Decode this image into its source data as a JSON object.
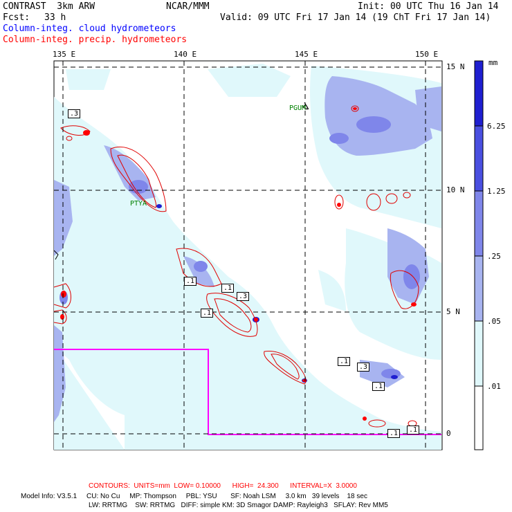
{
  "header": {
    "model": "CONTRAST  3km ARW",
    "org": "NCAR/MMM",
    "init": "Init: 00 UTC Thu 16 Jan 14",
    "fcst_label": "Fcst:",
    "fcst_value": "33 h",
    "valid": "Valid: 09 UTC Fri 17 Jan 14 (19 ChT Fri 17 Jan 14)",
    "legend_cloud": "Column-integ. cloud hydrometeors",
    "legend_precip": "Column-integ. precip. hydrometeors"
  },
  "colors": {
    "cloud_text": "#0000ff",
    "precip_text": "#ff0000",
    "contour": "#e00000",
    "box": "#ff00ff",
    "station": "#008000",
    "shade_lightest": "#e0f8fb",
    "shade_light": "#a8b4f0",
    "shade_mid": "#7f86ea",
    "shade_strong": "#4a4fe0",
    "shade_darkest": "#1f1fd0"
  },
  "axes": {
    "lon_labels": [
      "135 E",
      "140 E",
      "145 E",
      "150 E"
    ],
    "lat_labels": [
      "15 N",
      "10 N",
      "5 N",
      "0"
    ]
  },
  "stations": [
    "PGUM",
    "PTYA"
  ],
  "contour_labels": [
    ".3",
    ".1",
    ".1",
    ".3",
    ".1",
    ".1",
    ".3",
    ".1",
    ".1",
    ".1"
  ],
  "colorbar": {
    "unit": "mm",
    "ticks": [
      "6.25",
      "1.25",
      ".25",
      ".05",
      ".01"
    ]
  },
  "footer": {
    "contours_line": "CONTOURS:  UNITS=mm  LOW= 0.10000      HIGH=  24.300      INTERVAL=X  3.0000",
    "model_info_1": "Model Info: V3.5.1     CU: No Cu     MP: Thompson     PBL: YSU       SF: Noah LSM     3.0 km   39 levels    18 sec",
    "model_info_2": "LW: RRTMG    SW: RRTMG   DIFF: simple KM: 3D Smagor DAMP: Rayleigh3   SFLAY: Rev MM5"
  }
}
